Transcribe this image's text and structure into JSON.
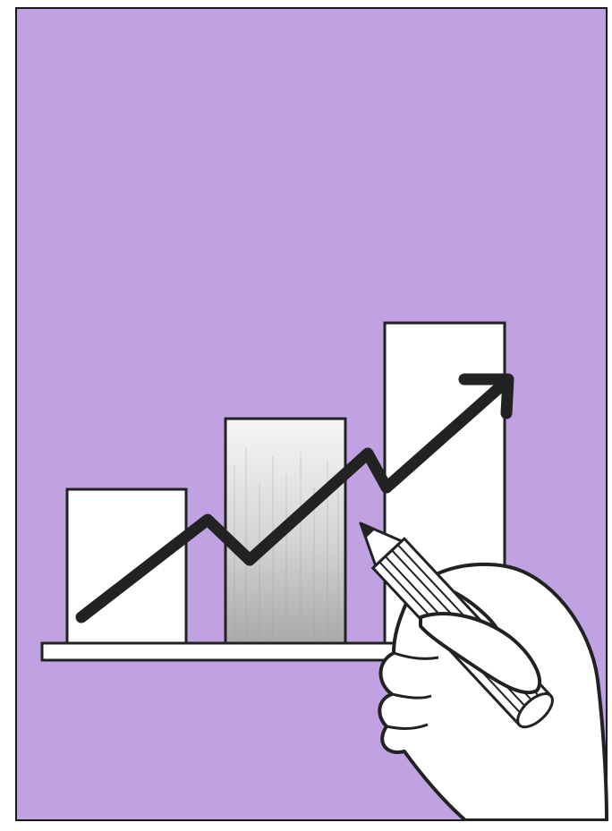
{
  "illustration": {
    "colors": {
      "background": "#c0a2e3",
      "frame": "#1a1a1a",
      "ink": "#222222",
      "paper": "#ffffff",
      "shade": "#b4b4b4"
    },
    "icons": [
      "hand-icon",
      "pencil-icon",
      "trend-arrow-icon"
    ]
  }
}
